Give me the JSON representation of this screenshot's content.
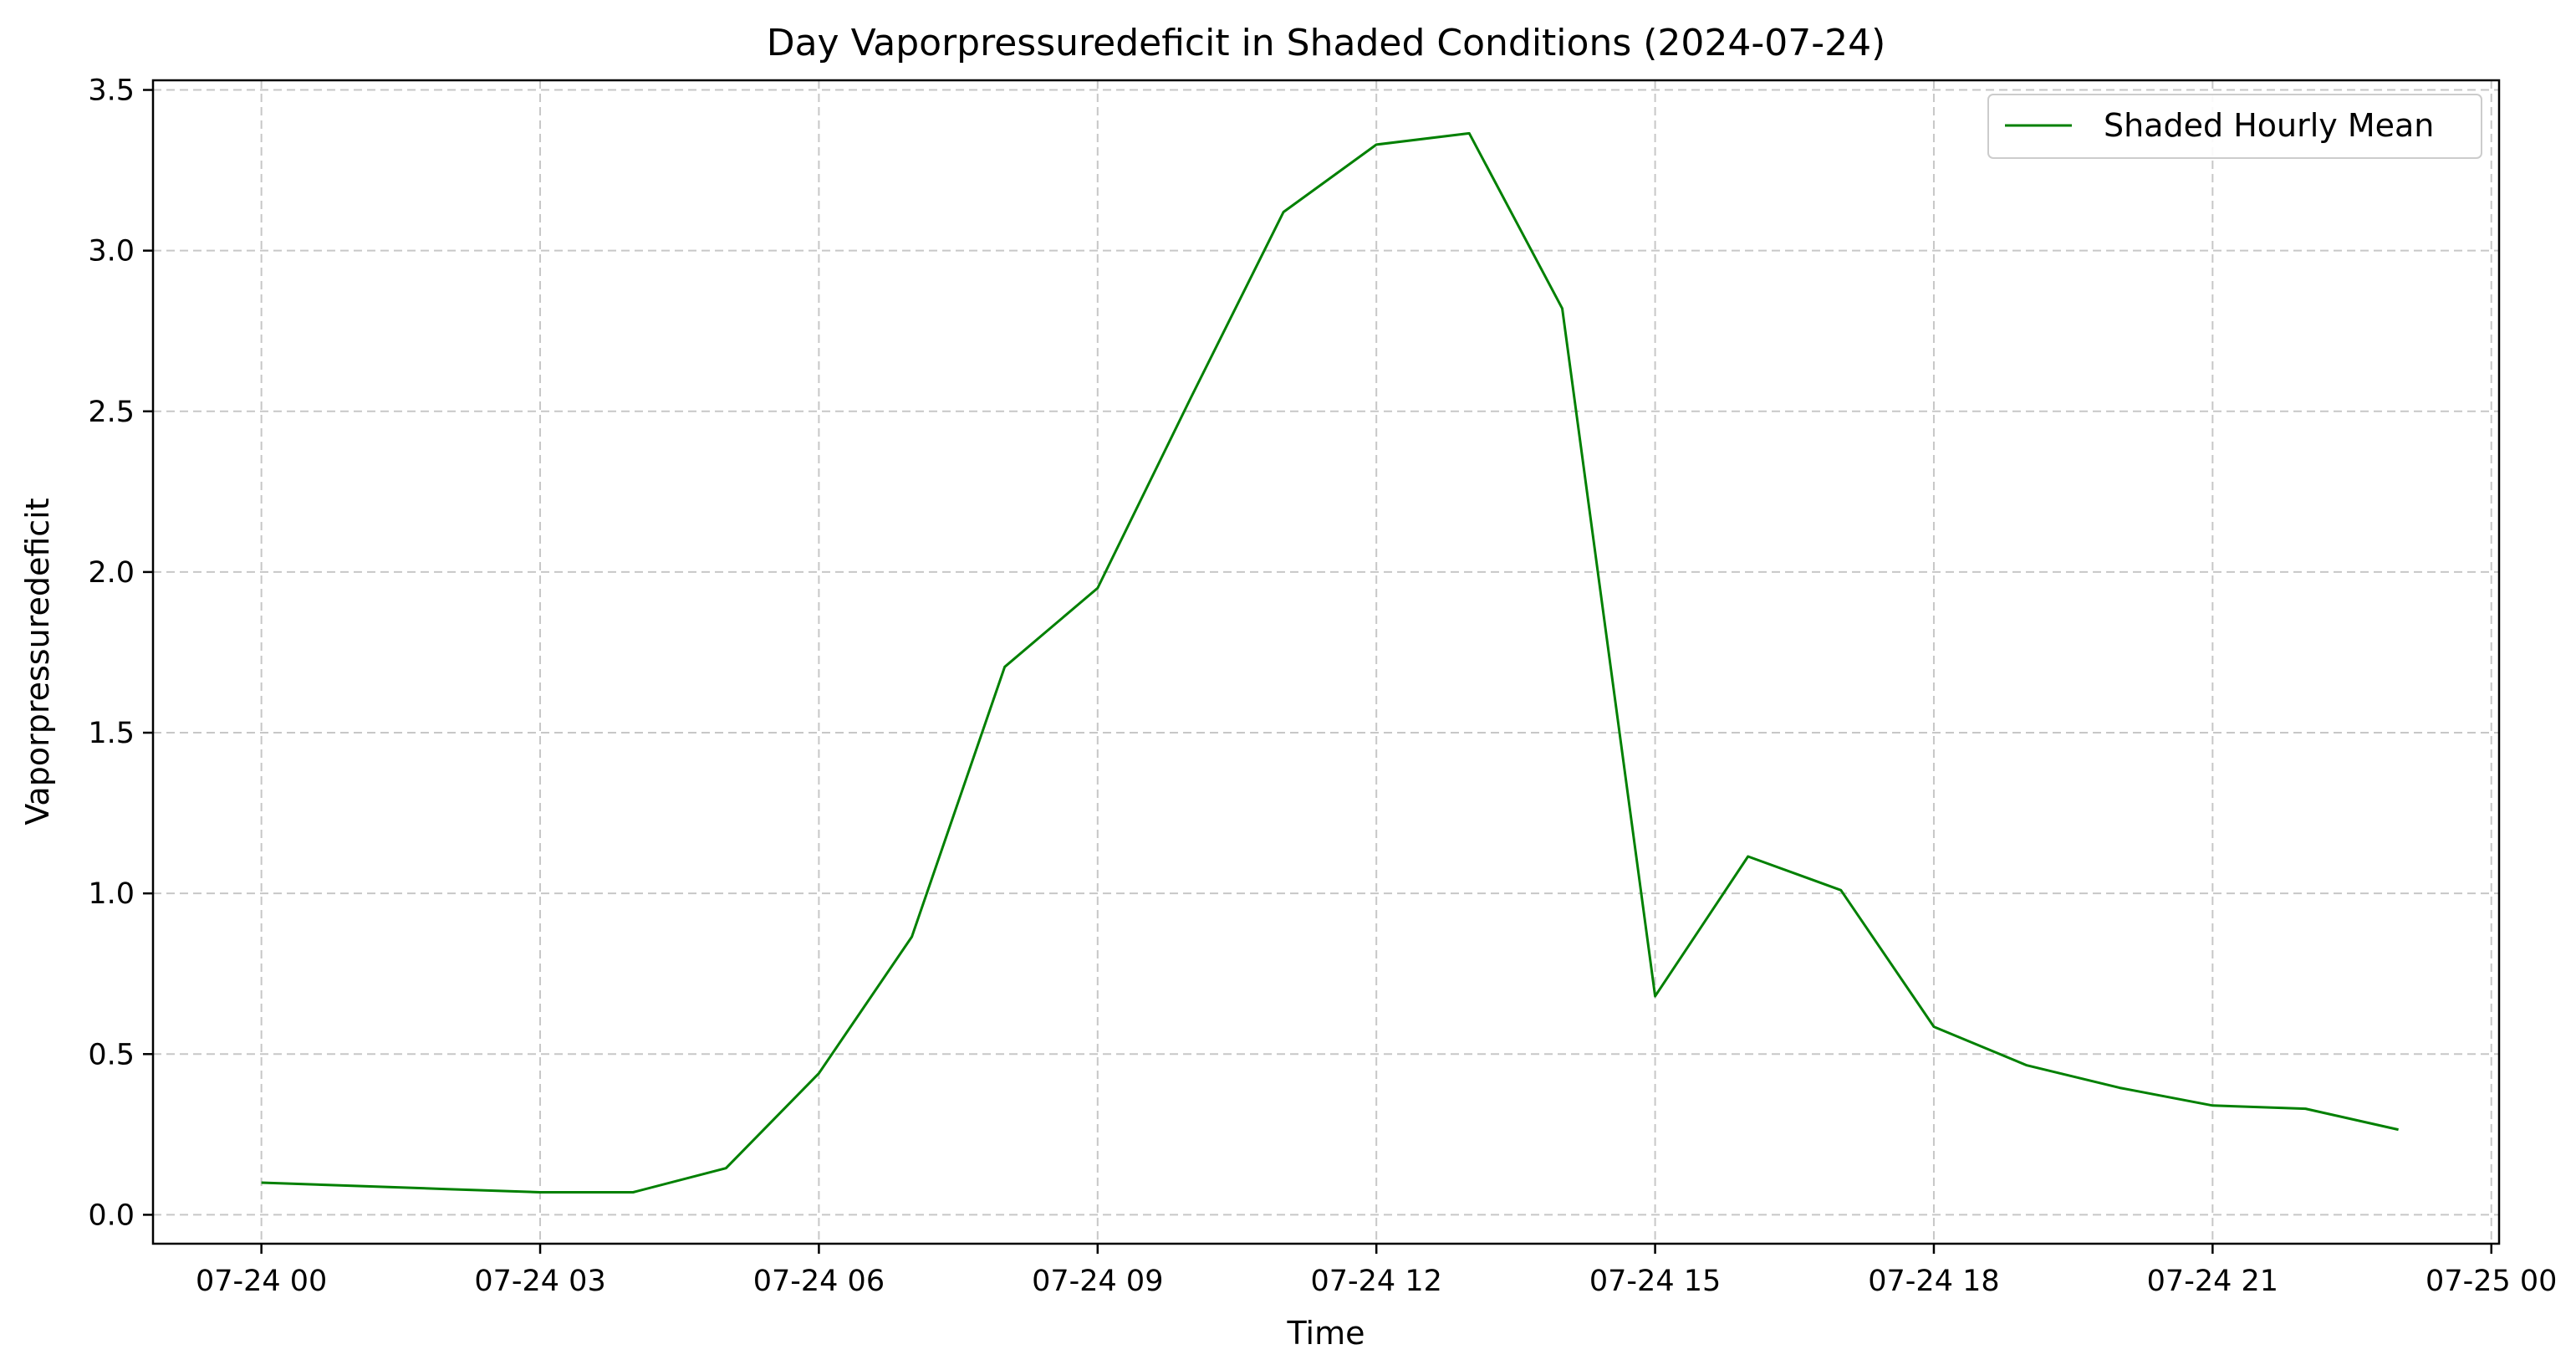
{
  "chart_data": {
    "type": "line",
    "title": "Day Vaporpressuredeficit in Shaded Conditions (2024-07-24)",
    "xlabel": "Time",
    "ylabel": "Vaporpressuredeficit",
    "x_ticks": [
      "07-24 00",
      "07-24 03",
      "07-24 06",
      "07-24 09",
      "07-24 12",
      "07-24 15",
      "07-24 18",
      "07-24 21",
      "07-25 00"
    ],
    "y_ticks": [
      "0.0",
      "0.5",
      "1.0",
      "1.5",
      "2.0",
      "2.5",
      "3.0",
      "3.5"
    ],
    "xlim": [
      "2024-07-23 22:50",
      "2024-07-25 00:05"
    ],
    "ylim": [
      -0.09,
      3.53
    ],
    "grid": true,
    "legend_position": "top-right",
    "series": [
      {
        "name": "Shaded Hourly Mean",
        "color": "#008000",
        "x": [
          "2024-07-24 00:00",
          "2024-07-24 02:00",
          "2024-07-24 03:00",
          "2024-07-24 04:00",
          "2024-07-24 05:00",
          "2024-07-24 06:00",
          "2024-07-24 07:00",
          "2024-07-24 08:00",
          "2024-07-24 09:00",
          "2024-07-24 10:00",
          "2024-07-24 11:00",
          "2024-07-24 12:00",
          "2024-07-24 13:00",
          "2024-07-24 14:00",
          "2024-07-24 15:00",
          "2024-07-24 16:00",
          "2024-07-24 17:00",
          "2024-07-24 18:00",
          "2024-07-24 19:00",
          "2024-07-24 20:00",
          "2024-07-24 21:00",
          "2024-07-24 22:00",
          "2024-07-24 23:00"
        ],
        "values": [
          0.1,
          0.08,
          0.07,
          0.07,
          0.145,
          0.44,
          0.865,
          1.705,
          1.95,
          2.54,
          3.12,
          3.33,
          3.365,
          2.82,
          0.68,
          1.115,
          1.01,
          0.585,
          0.465,
          0.395,
          0.34,
          0.33,
          0.265
        ]
      }
    ]
  }
}
